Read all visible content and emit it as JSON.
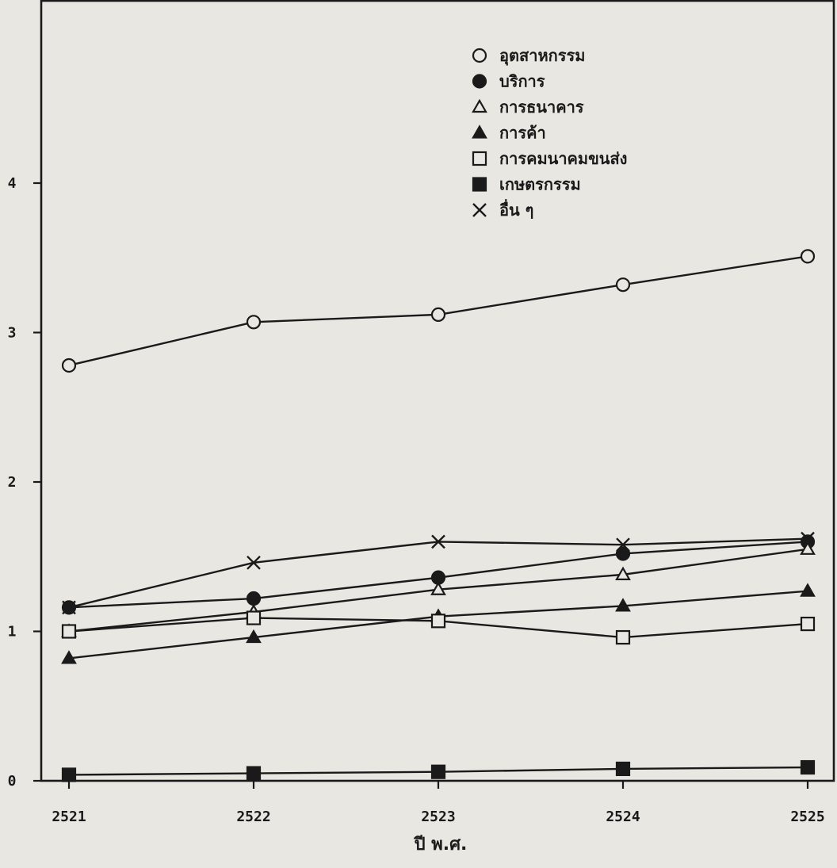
{
  "chart_data": {
    "type": "line",
    "title": "",
    "xlabel": "ปี พ.ศ.",
    "ylabel": "",
    "categories": [
      "2521",
      "2522",
      "2523",
      "2524",
      "2525"
    ],
    "ylim": [
      0,
      5
    ],
    "yticks": [
      0,
      1,
      2,
      3,
      4
    ],
    "grid": false,
    "legend_position": "top-center",
    "series": [
      {
        "name": "อุตสาหกรรม",
        "marker": "circle-open",
        "values": [
          2.78,
          3.07,
          3.12,
          3.32,
          3.51
        ]
      },
      {
        "name": "บริการ",
        "marker": "circle-filled",
        "values": [
          1.16,
          1.22,
          1.36,
          1.52,
          1.6
        ]
      },
      {
        "name": "การธนาคาร",
        "marker": "triangle-open",
        "values": [
          1.0,
          1.13,
          1.28,
          1.38,
          1.55
        ]
      },
      {
        "name": "การค้า",
        "marker": "triangle-filled",
        "values": [
          0.82,
          0.96,
          1.1,
          1.17,
          1.27
        ]
      },
      {
        "name": "การคมนาคมขนส่ง",
        "marker": "square-open",
        "values": [
          1.0,
          1.09,
          1.07,
          0.96,
          1.05
        ]
      },
      {
        "name": "เกษตรกรรม",
        "marker": "square-filled",
        "values": [
          0.04,
          0.05,
          0.06,
          0.08,
          0.09
        ]
      },
      {
        "name": "อื่น ๆ",
        "marker": "cross",
        "values": [
          1.16,
          1.46,
          1.6,
          1.58,
          1.62
        ]
      }
    ]
  },
  "colors": {
    "ink": "#1a1a1a",
    "paper": "#e9e7e1"
  }
}
